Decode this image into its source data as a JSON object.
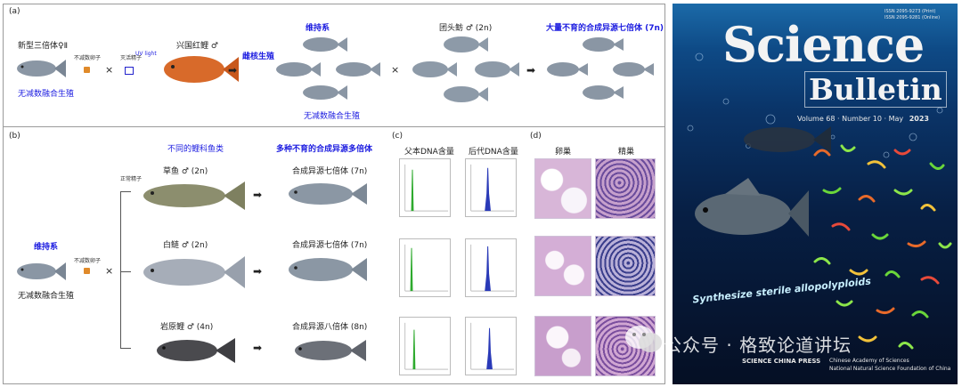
{
  "panel_a": {
    "letter": "(a)",
    "triploid_label": "新型三倍体♀Ⅱ",
    "unreduced_egg_label": "不减数卵子",
    "uv_sperm_label": "灭活精子",
    "uv_light": "UV light",
    "xingguo_label": "兴国红鲤 ♂",
    "gynogenesis": "雌核生殖",
    "maintenance_title": "维持系",
    "unreduced_gyno": "无减数融合生殖",
    "unreduced_gyno_bottom": "无减数融合生殖",
    "tuantou_label": "团头鲂 ♂ (2n)",
    "result_title": "大量不育的合成异源七倍体 (7n)",
    "cross": "×",
    "arrow": "➡"
  },
  "panel_b": {
    "letter": "(b)",
    "fish_kinds": "不同的鲤科鱼类",
    "result_title": "多种不育的合成异源多倍体",
    "maintenance": "维持系",
    "unreduced_egg": "不减数卵子",
    "unreduced_gyno": "无减数融合生殖",
    "sperm_label": "正常精子",
    "rows": [
      {
        "male": "草鱼 ♂ (2n)",
        "result": "合成异源七倍体 (7n)"
      },
      {
        "male": "白鲢 ♂ (2n)",
        "result": "合成异源七倍体 (7n)"
      },
      {
        "male": "岩原鲤 ♂ (4n)",
        "result": "合成异源八倍体 (8n)"
      }
    ]
  },
  "panel_c": {
    "letter": "(c)",
    "col1": "父本DNA含量",
    "col2": "后代DNA含量"
  },
  "panel_d": {
    "letter": "(d)",
    "col1": "卵巢",
    "col2": "精巢"
  },
  "cover": {
    "issn1": "ISSN 2095-9273 (Print)",
    "issn2": "ISSN 2095-9281 (Online)",
    "title1": "Science",
    "title2": "Bulletin",
    "volume": "Volume 68 · Number 10 · May",
    "year": "2023",
    "tagline": "Synthesize sterile allopolyploids",
    "publisher": "SCIENCE CHINA PRESS",
    "org1": "Chinese Academy of Sciences",
    "org2": "National Natural Science Foundation of China"
  },
  "watermark": "公众号 · 格致论道讲坛"
}
